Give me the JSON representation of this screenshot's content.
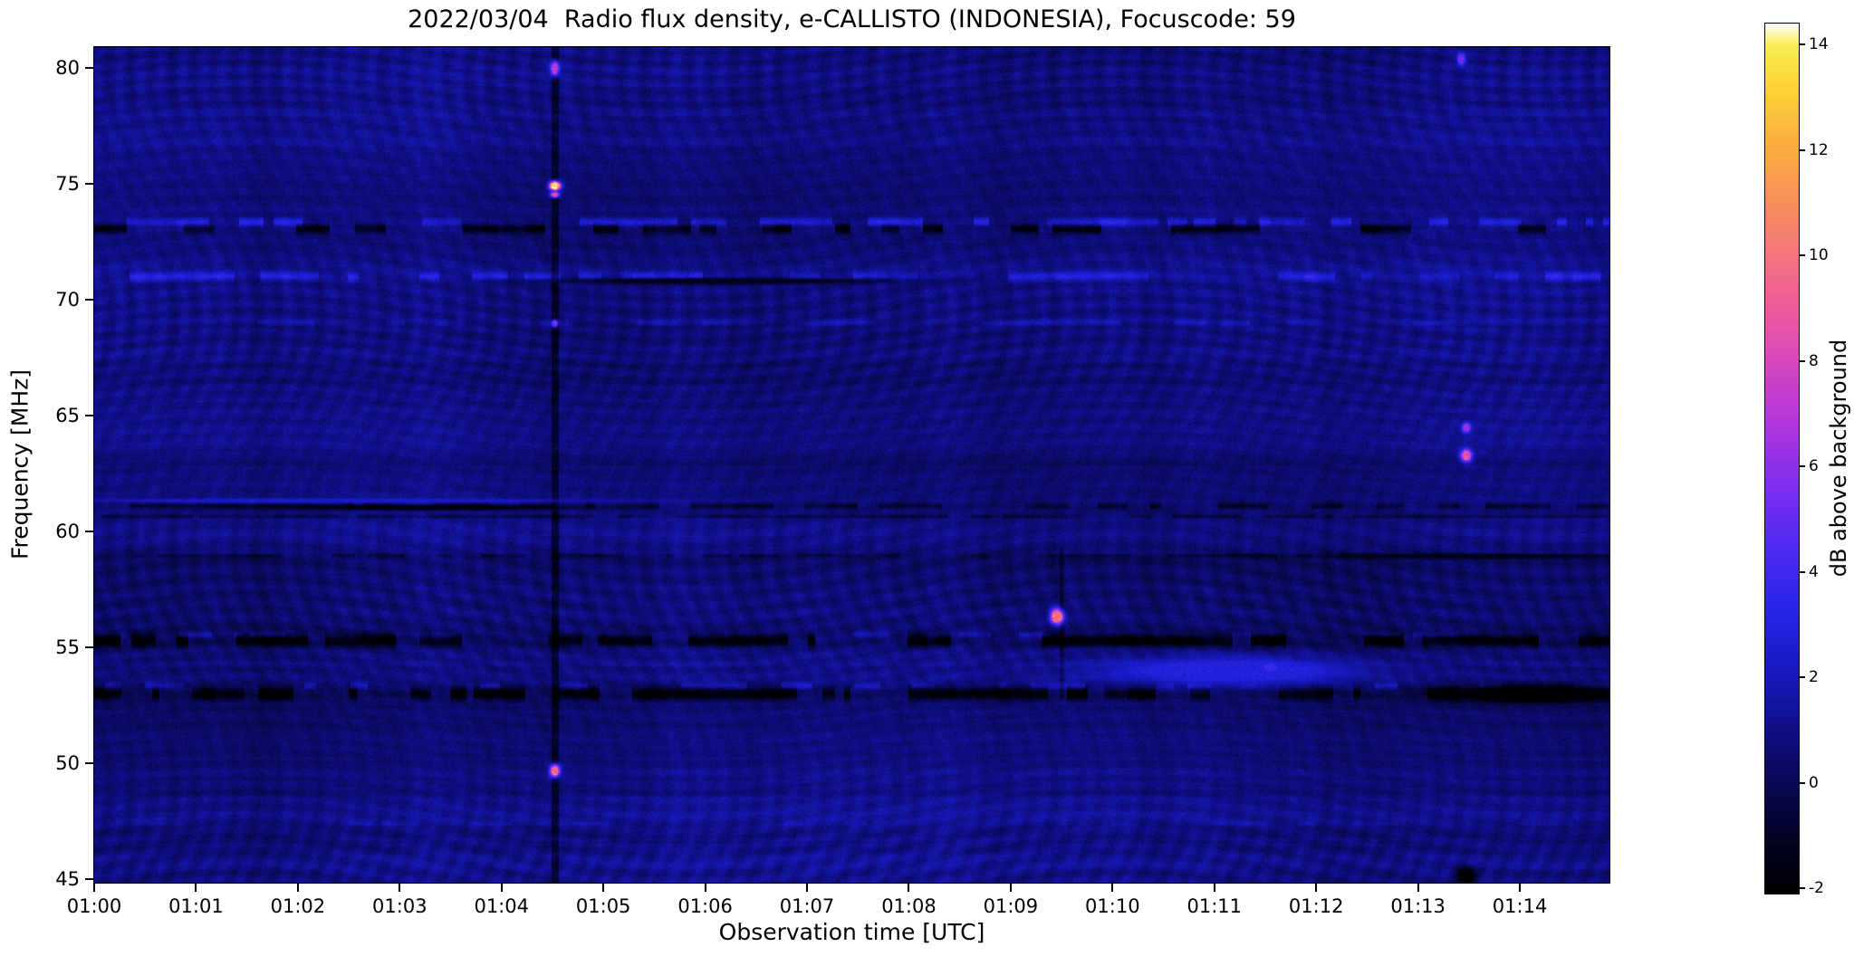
{
  "chart_data": {
    "type": "heatmap",
    "title": "2022/03/04  Radio flux density, e-CALLISTO (INDONESIA), Focuscode: 59",
    "xlabel": "Observation time [UTC]",
    "ylabel": "Frequency [MHz]",
    "x_ticks": [
      "01:00",
      "01:01",
      "01:02",
      "01:03",
      "01:04",
      "01:05",
      "01:06",
      "01:07",
      "01:08",
      "01:09",
      "01:10",
      "01:11",
      "01:12",
      "01:13",
      "01:14"
    ],
    "x_range_minutes": [
      0,
      14.88
    ],
    "y_ticks": [
      45,
      50,
      55,
      60,
      65,
      70,
      75,
      80
    ],
    "y_range": [
      44.85,
      80.9
    ],
    "colorbar": {
      "label": "dB above background",
      "ticks": [
        -2,
        0,
        2,
        4,
        6,
        8,
        10,
        12,
        14
      ],
      "range": [
        -2.1,
        14.4
      ]
    },
    "colormap": {
      "name": "black-blue-magenta-orange-yellow-white",
      "stops": [
        {
          "v": -2.1,
          "c": "#000003"
        },
        {
          "v": -1.3,
          "c": "#02021b"
        },
        {
          "v": -0.5,
          "c": "#06063e"
        },
        {
          "v": 0.4,
          "c": "#0b0b68"
        },
        {
          "v": 1.3,
          "c": "#121297"
        },
        {
          "v": 2.2,
          "c": "#1a1ac4"
        },
        {
          "v": 3.2,
          "c": "#2525e6"
        },
        {
          "v": 4.2,
          "c": "#4629f0"
        },
        {
          "v": 5.2,
          "c": "#6d2cf2"
        },
        {
          "v": 6.2,
          "c": "#9732e8"
        },
        {
          "v": 7.2,
          "c": "#bf3bd4"
        },
        {
          "v": 8.2,
          "c": "#dd4bb5"
        },
        {
          "v": 9.2,
          "c": "#ee5f96"
        },
        {
          "v": 10.2,
          "c": "#f47a74"
        },
        {
          "v": 11.2,
          "c": "#f89356"
        },
        {
          "v": 12.2,
          "c": "#fbb13d"
        },
        {
          "v": 13.2,
          "c": "#fcd336"
        },
        {
          "v": 14.0,
          "c": "#f9ee55"
        },
        {
          "v": 14.4,
          "c": "#ffffff"
        }
      ]
    },
    "background_db": 0.75,
    "rfi_bands": [
      {
        "freq": 73.35,
        "half_width": 0.18,
        "level": 2.0,
        "duty": 0.5
      },
      {
        "freq": 73.05,
        "half_width": 0.2,
        "level": -2.3,
        "duty": 0.45
      },
      {
        "freq": 71.0,
        "half_width": 0.2,
        "level": 1.7,
        "duty": 0.6
      },
      {
        "freq": 69.0,
        "half_width": 0.12,
        "level": 0.9,
        "duty": 0.4
      },
      {
        "freq": 61.1,
        "half_width": 0.13,
        "level": -1.5,
        "duty": 0.45
      },
      {
        "freq": 60.65,
        "half_width": 0.09,
        "level": -1.1,
        "duty": 0.85
      },
      {
        "freq": 58.95,
        "half_width": 0.09,
        "level": -1.0,
        "duty": 0.7
      },
      {
        "freq": 55.55,
        "half_width": 0.12,
        "level": 1.2,
        "duty": 0.3
      },
      {
        "freq": 55.3,
        "half_width": 0.28,
        "level": -2.6,
        "duty": 0.55
      },
      {
        "freq": 53.35,
        "half_width": 0.14,
        "level": 1.6,
        "duty": 0.35
      },
      {
        "freq": 53.0,
        "half_width": 0.27,
        "level": -2.6,
        "duty": 0.55
      },
      {
        "freq": 47.4,
        "half_width": 0.1,
        "level": 0.7,
        "duty": 0.3
      }
    ],
    "vertical_stripes": [
      {
        "time_min": 4.52,
        "width_min": 0.06,
        "level": -1.5,
        "freq_lo": 44.85,
        "freq_hi": 80.9
      },
      {
        "time_min": 9.5,
        "width_min": 0.04,
        "level": -1.0,
        "freq_lo": 52.8,
        "freq_hi": 59.3
      }
    ],
    "bursts": [
      {
        "time_min": 4.52,
        "freq": 80.0,
        "df": 0.3,
        "dt": 0.04,
        "level": 7.0
      },
      {
        "time_min": 4.52,
        "freq": 74.93,
        "df": 0.18,
        "dt": 0.05,
        "level": 13.5
      },
      {
        "time_min": 4.52,
        "freq": 74.55,
        "df": 0.12,
        "dt": 0.04,
        "level": 8.0
      },
      {
        "time_min": 4.52,
        "freq": 69.0,
        "df": 0.15,
        "dt": 0.03,
        "level": 5.5
      },
      {
        "time_min": 4.52,
        "freq": 49.7,
        "df": 0.25,
        "dt": 0.045,
        "level": 9.5
      },
      {
        "time_min": 9.45,
        "freq": 56.35,
        "df": 0.3,
        "dt": 0.06,
        "level": 10.0
      },
      {
        "time_min": 13.47,
        "freq": 64.5,
        "df": 0.2,
        "dt": 0.04,
        "level": 6.0
      },
      {
        "time_min": 13.47,
        "freq": 63.3,
        "df": 0.25,
        "dt": 0.05,
        "level": 8.5
      },
      {
        "time_min": 13.42,
        "freq": 80.4,
        "df": 0.25,
        "dt": 0.04,
        "level": 5.0
      },
      {
        "time_min": 11.55,
        "freq": 54.15,
        "df": 0.18,
        "dt": 0.08,
        "level": 3.8
      },
      {
        "time_min": 11.15,
        "freq": 54.0,
        "df": 0.55,
        "dt": 1.15,
        "level": 2.9
      },
      {
        "time_min": 2.35,
        "freq": 61.35,
        "df": 0.09,
        "dt": 2.3,
        "level": 2.2
      }
    ],
    "dark_patches": [
      {
        "time_min": 13.47,
        "freq": 45.15,
        "df": 0.35,
        "dt": 0.09,
        "level": -2.2
      },
      {
        "time_min": 6.15,
        "freq": 70.82,
        "df": 0.12,
        "dt": 1.5,
        "level": -1.3
      },
      {
        "time_min": 3.25,
        "freq": 61.05,
        "df": 0.1,
        "dt": 1.3,
        "level": -1.7
      },
      {
        "time_min": 14.15,
        "freq": 53.0,
        "df": 0.35,
        "dt": 0.85,
        "level": -2.4
      },
      {
        "time_min": 13.55,
        "freq": 58.95,
        "df": 0.1,
        "dt": 1.4,
        "level": -1.4
      }
    ]
  }
}
